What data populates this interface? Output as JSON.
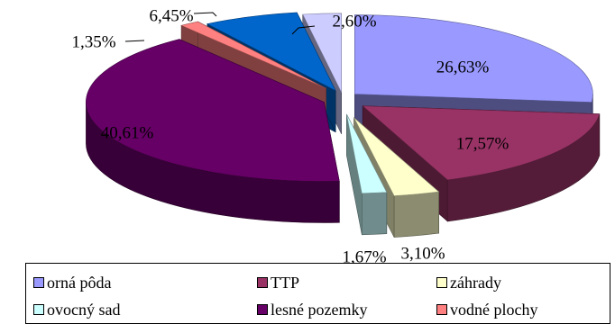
{
  "chart_data": {
    "type": "pie",
    "style": "3d-exploded",
    "slices": [
      {
        "name": "orná pôda",
        "value": 26.63,
        "label": "26,63%",
        "color": "#9999ff"
      },
      {
        "name": "TTP",
        "value": 17.57,
        "label": "17,57%",
        "color": "#993366"
      },
      {
        "name": "záhrady",
        "value": 3.1,
        "label": "3,10%",
        "color": "#ffffcc"
      },
      {
        "name": "ovocný sad",
        "value": 1.67,
        "label": "1,67%",
        "color": "#ccffff"
      },
      {
        "name": "lesné pozemky",
        "value": 40.61,
        "label": "40,61%",
        "color": "#660066"
      },
      {
        "name": "vodné plochy",
        "value": 1.35,
        "label": "1,35%",
        "color": "#ff8080"
      },
      {
        "name": "",
        "value": 6.45,
        "label": "6,45%",
        "color": "#0066cc"
      },
      {
        "name": "",
        "value": 2.6,
        "label": "2,60%",
        "color": "#ccccff"
      }
    ],
    "legend_placement": "bottom"
  }
}
